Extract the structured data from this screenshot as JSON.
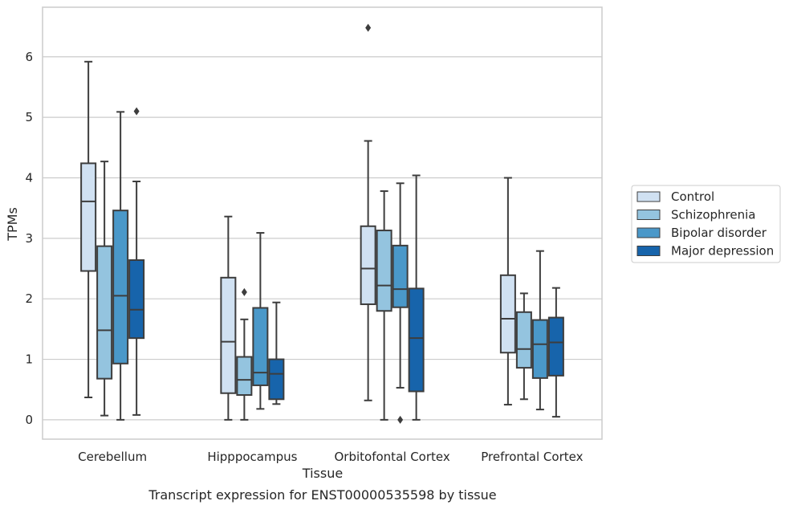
{
  "chart_data": {
    "type": "box",
    "caption": "Transcript expression for ENST00000535598 by tissue",
    "xlabel": "Tissue",
    "ylabel": "TPMs",
    "ylim": [
      -0.32,
      6.82
    ],
    "yticks": [
      0,
      1,
      2,
      3,
      4,
      5,
      6
    ],
    "grid": "horizontal",
    "legend_position": "right",
    "categories": [
      "Cerebellum",
      "Hipppocampus",
      "Orbitofontal Cortex",
      "Prefrontal Cortex"
    ],
    "series": [
      {
        "name": "Control",
        "color": "#d0e1f2",
        "boxes": [
          {
            "whisker_low": 0.37,
            "q1": 2.46,
            "median": 3.61,
            "q3": 4.24,
            "whisker_high": 5.92,
            "outliers": []
          },
          {
            "whisker_low": 0.0,
            "q1": 0.44,
            "median": 1.29,
            "q3": 2.35,
            "whisker_high": 3.36,
            "outliers": []
          },
          {
            "whisker_low": 0.32,
            "q1": 1.91,
            "median": 2.5,
            "q3": 3.2,
            "whisker_high": 4.61,
            "outliers": [
              6.48
            ]
          },
          {
            "whisker_low": 0.25,
            "q1": 1.11,
            "median": 1.67,
            "q3": 2.39,
            "whisker_high": 4.0,
            "outliers": []
          }
        ]
      },
      {
        "name": "Schizophrenia",
        "color": "#94c4df",
        "boxes": [
          {
            "whisker_low": 0.07,
            "q1": 0.68,
            "median": 1.48,
            "q3": 2.87,
            "whisker_high": 4.27,
            "outliers": []
          },
          {
            "whisker_low": 0.0,
            "q1": 0.41,
            "median": 0.66,
            "q3": 1.04,
            "whisker_high": 1.66,
            "outliers": [
              2.11
            ]
          },
          {
            "whisker_low": 0.0,
            "q1": 1.8,
            "median": 2.22,
            "q3": 3.13,
            "whisker_high": 3.78,
            "outliers": []
          },
          {
            "whisker_low": 0.34,
            "q1": 0.86,
            "median": 1.17,
            "q3": 1.78,
            "whisker_high": 2.09,
            "outliers": []
          }
        ]
      },
      {
        "name": "Bipolar disorder",
        "color": "#4a98c9",
        "boxes": [
          {
            "whisker_low": 0.0,
            "q1": 0.93,
            "median": 2.05,
            "q3": 3.46,
            "whisker_high": 5.09,
            "outliers": []
          },
          {
            "whisker_low": 0.18,
            "q1": 0.57,
            "median": 0.78,
            "q3": 1.85,
            "whisker_high": 3.09,
            "outliers": []
          },
          {
            "whisker_low": 0.53,
            "q1": 1.86,
            "median": 2.16,
            "q3": 2.88,
            "whisker_high": 3.91,
            "outliers": [
              0.0
            ]
          },
          {
            "whisker_low": 0.17,
            "q1": 0.69,
            "median": 1.25,
            "q3": 1.65,
            "whisker_high": 2.79,
            "outliers": []
          }
        ]
      },
      {
        "name": "Major depression",
        "color": "#1764ab",
        "boxes": [
          {
            "whisker_low": 0.08,
            "q1": 1.35,
            "median": 1.82,
            "q3": 2.64,
            "whisker_high": 3.94,
            "outliers": [
              5.1
            ]
          },
          {
            "whisker_low": 0.26,
            "q1": 0.34,
            "median": 0.76,
            "q3": 1.0,
            "whisker_high": 1.94,
            "outliers": []
          },
          {
            "whisker_low": 0.0,
            "q1": 0.47,
            "median": 1.35,
            "q3": 2.17,
            "whisker_high": 4.04,
            "outliers": []
          },
          {
            "whisker_low": 0.05,
            "q1": 0.73,
            "median": 1.28,
            "q3": 1.69,
            "whisker_high": 2.18,
            "outliers": []
          }
        ]
      }
    ]
  }
}
